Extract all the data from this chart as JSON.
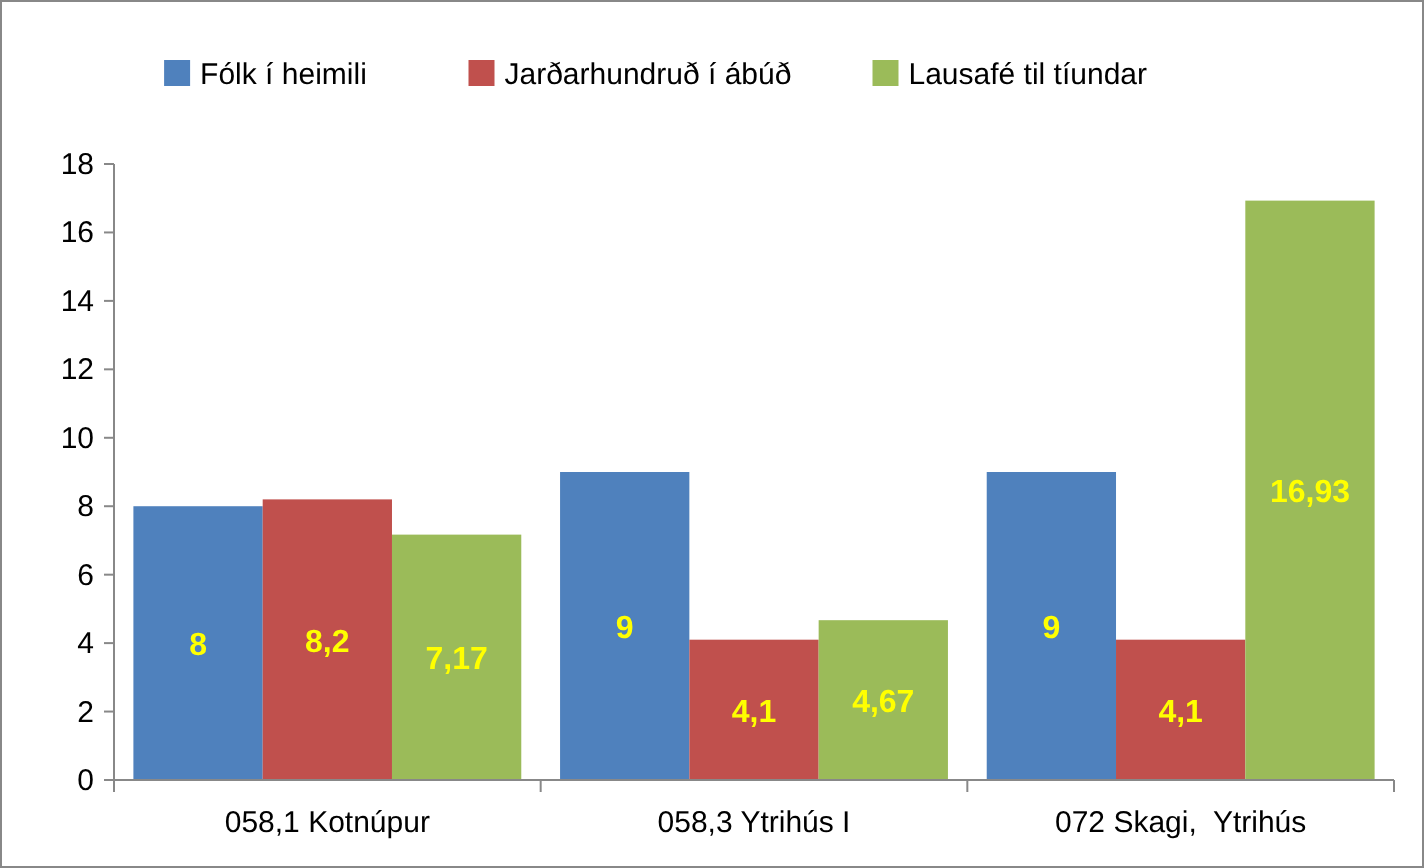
{
  "chart_data": {
    "type": "bar",
    "categories": [
      "058,1 Kotnúpur",
      "058,3 Ytrihús I",
      "072 Skagi,  Ytrihús"
    ],
    "series": [
      {
        "name": "Fólk í heimili",
        "color": "#4f81bd",
        "values": [
          8,
          9,
          9
        ],
        "value_labels": [
          "8",
          "9",
          "9"
        ]
      },
      {
        "name": "Jarðarhundruð í ábúð",
        "color": "#c0504d",
        "values": [
          8.2,
          4.1,
          4.1
        ],
        "value_labels": [
          "8,2",
          "4,1",
          "4,1"
        ]
      },
      {
        "name": "Lausafé til tíundar",
        "color": "#9bbb59",
        "values": [
          7.17,
          4.67,
          16.93
        ],
        "value_labels": [
          "7,17",
          "4,67",
          "16,93"
        ]
      }
    ],
    "ylim": [
      0,
      18
    ],
    "yticks": [
      0,
      2,
      4,
      6,
      8,
      10,
      12,
      14,
      16,
      18
    ],
    "grid": false,
    "legend": "top"
  }
}
